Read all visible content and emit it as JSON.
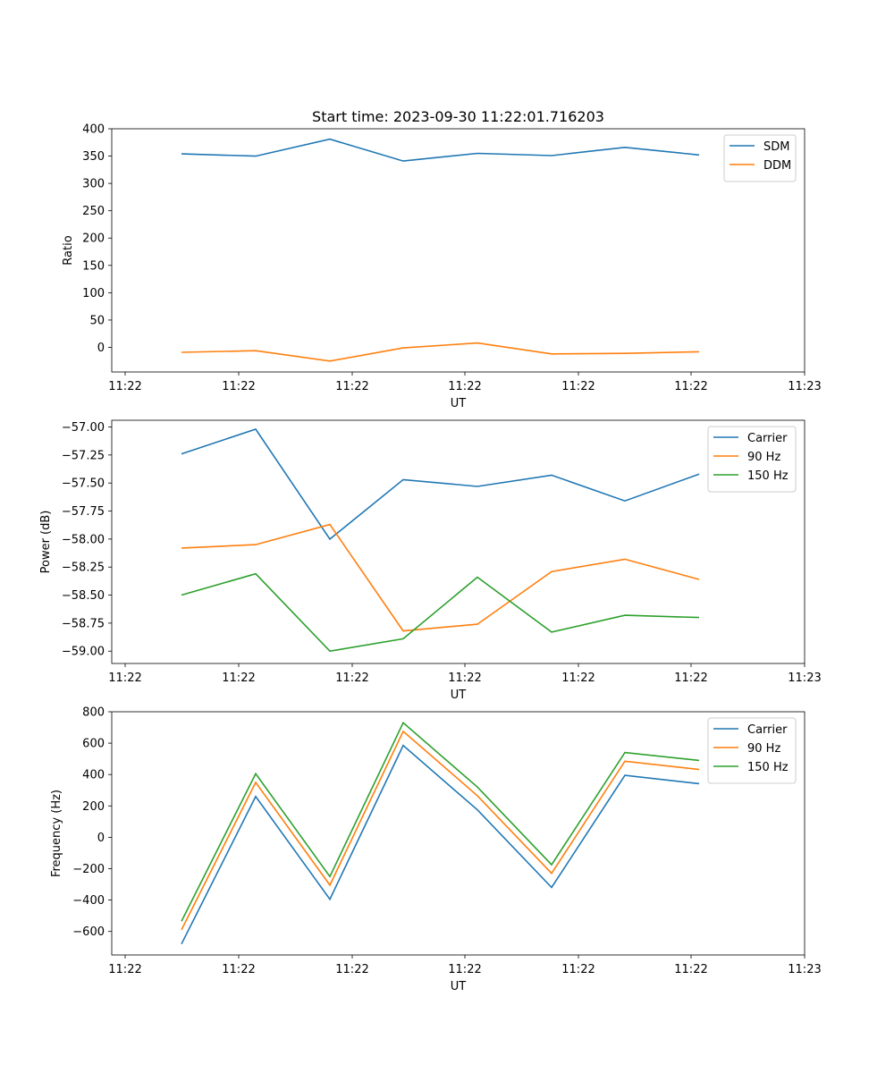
{
  "chart_data": [
    {
      "type": "line",
      "title": "Start time: 2023-09-30 11:22:01.716203",
      "xlabel": "UT",
      "ylabel": "Ratio",
      "x_tick_labels": [
        "11:22",
        "11:22",
        "11:22",
        "11:22",
        "11:22",
        "11:22",
        "11:22",
        "11:23"
      ],
      "y_ticks": [
        0,
        50,
        100,
        150,
        200,
        250,
        300,
        350,
        400
      ],
      "ylim": [
        -45,
        400
      ],
      "legend_position": "top-right",
      "series": [
        {
          "name": "SDM",
          "color": "#1f77b4",
          "values": [
            354,
            350,
            381,
            341,
            355,
            351,
            366,
            352
          ]
        },
        {
          "name": "DDM",
          "color": "#ff7f0e",
          "values": [
            -9,
            -6,
            -25,
            -1,
            8,
            -12,
            -11,
            -8
          ]
        }
      ]
    },
    {
      "type": "line",
      "title": "",
      "xlabel": "UT",
      "ylabel": "Power (dB)",
      "x_tick_labels": [
        "11:22",
        "11:22",
        "11:22",
        "11:22",
        "11:22",
        "11:22",
        "11:22",
        "11:23"
      ],
      "y_ticks": [
        "−59.00",
        "−58.75",
        "−58.50",
        "−58.25",
        "−58.00",
        "−57.75",
        "−57.50",
        "−57.25",
        "−57.00"
      ],
      "y_tick_values": [
        -59.0,
        -58.75,
        -58.5,
        -58.25,
        -58.0,
        -57.75,
        -57.5,
        -57.25,
        -57.0
      ],
      "ylim": [
        -59.11,
        -56.94
      ],
      "legend_position": "top-right",
      "series": [
        {
          "name": "Carrier",
          "color": "#1f77b4",
          "values": [
            -57.24,
            -57.02,
            -58.0,
            -57.47,
            -57.53,
            -57.43,
            -57.66,
            -57.42
          ]
        },
        {
          "name": "90 Hz",
          "color": "#ff7f0e",
          "values": [
            -58.08,
            -58.05,
            -57.87,
            -58.82,
            -58.76,
            -58.29,
            -58.18,
            -58.36
          ]
        },
        {
          "name": "150 Hz",
          "color": "#2ca02c",
          "values": [
            -58.5,
            -58.31,
            -59.0,
            -58.89,
            -58.34,
            -58.83,
            -58.68,
            -58.7
          ]
        }
      ]
    },
    {
      "type": "line",
      "title": "",
      "xlabel": "UT",
      "ylabel": "Frequency (Hz)",
      "x_tick_labels": [
        "11:22",
        "11:22",
        "11:22",
        "11:22",
        "11:22",
        "11:22",
        "11:22",
        "11:23"
      ],
      "y_ticks": [
        "−600",
        "−400",
        "−200",
        "0",
        "200",
        "400",
        "600",
        "800"
      ],
      "y_tick_values": [
        -600,
        -400,
        -200,
        0,
        200,
        400,
        600,
        800
      ],
      "ylim": [
        -750,
        800
      ],
      "legend_position": "top-right",
      "series": [
        {
          "name": "Carrier",
          "color": "#1f77b4",
          "values": [
            -680,
            260,
            -395,
            585,
            175,
            -320,
            395,
            342
          ]
        },
        {
          "name": "90 Hz",
          "color": "#ff7f0e",
          "values": [
            -590,
            350,
            -305,
            675,
            265,
            -230,
            485,
            432
          ]
        },
        {
          "name": "150 Hz",
          "color": "#2ca02c",
          "values": [
            -535,
            405,
            -250,
            730,
            320,
            -175,
            540,
            490
          ]
        }
      ]
    }
  ]
}
